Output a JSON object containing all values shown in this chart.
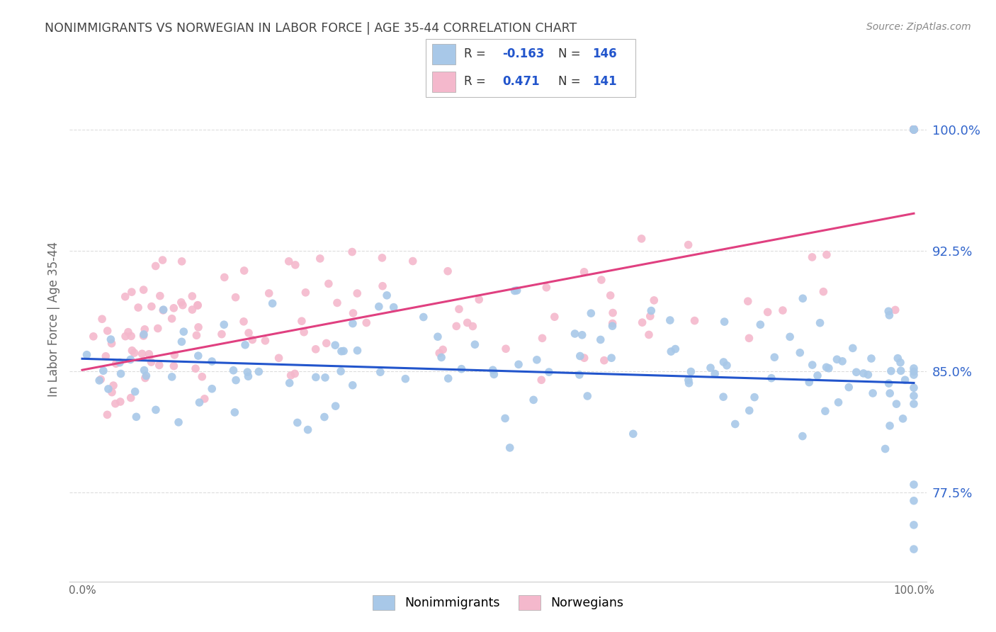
{
  "title": "NONIMMIGRANTS VS NORWEGIAN IN LABOR FORCE | AGE 35-44 CORRELATION CHART",
  "source": "Source: ZipAtlas.com",
  "ylabel": "In Labor Force | Age 35-44",
  "yticks": [
    0.775,
    0.85,
    0.925,
    1.0
  ],
  "ytick_labels": [
    "77.5%",
    "85.0%",
    "92.5%",
    "100.0%"
  ],
  "xtick_labels": [
    "0.0%",
    "100.0%"
  ],
  "blue_R": -0.163,
  "blue_N": 146,
  "pink_R": 0.471,
  "pink_N": 141,
  "blue_color": "#a8c8e8",
  "pink_color": "#f4b8cc",
  "blue_line_color": "#2255cc",
  "pink_line_color": "#e04080",
  "legend_blue_R": "-0.163",
  "legend_pink_R": "0.471",
  "legend_blue_N": "146",
  "legend_pink_N": "141",
  "background_color": "#ffffff",
  "grid_color": "#dddddd",
  "title_color": "#444444",
  "source_color": "#888888",
  "ylabel_color": "#666666",
  "ytick_color": "#3366cc",
  "xtick_color": "#666666"
}
